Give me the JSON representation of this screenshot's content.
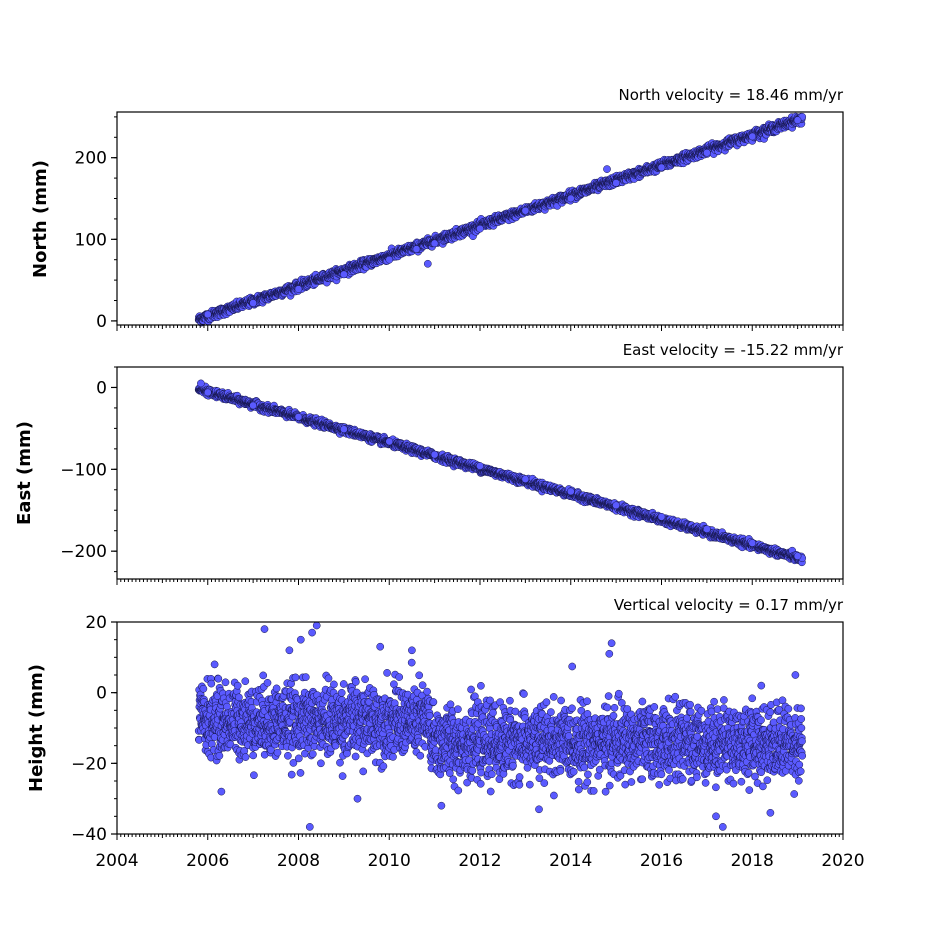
{
  "chart_data": [
    {
      "type": "scatter",
      "title": "North velocity = 18.46 mm/yr",
      "xlabel": "",
      "ylabel": "North (mm)",
      "xlim": [
        2004,
        2020
      ],
      "ylim": [
        -5,
        256
      ],
      "yticks": [
        0,
        100,
        200
      ],
      "ytick_labels": [
        "0",
        "100",
        "200"
      ],
      "x_range": [
        2005.8,
        2019.1
      ],
      "trend": {
        "slope_mm_per_yr": 18.46,
        "value_at_start": 2,
        "value_at_end": 248
      },
      "scatter_sd_mm": 2.5,
      "points": [
        [
          2006.0,
          8
        ],
        [
          2007.0,
          22
        ],
        [
          2008.0,
          39
        ],
        [
          2009.0,
          57
        ],
        [
          2010.0,
          75
        ],
        [
          2010.6,
          88
        ],
        [
          2010.85,
          70
        ],
        [
          2011.0,
          95
        ],
        [
          2012.0,
          113
        ],
        [
          2013.0,
          135
        ],
        [
          2014.0,
          150
        ],
        [
          2014.8,
          186
        ],
        [
          2015.0,
          169
        ],
        [
          2016.0,
          188
        ],
        [
          2017.0,
          206
        ],
        [
          2018.0,
          226
        ],
        [
          2019.0,
          246
        ]
      ],
      "marker_color": "#5a5aff",
      "grid": false
    },
    {
      "type": "scatter",
      "title": "East velocity = -15.22 mm/yr",
      "xlabel": "",
      "ylabel": "East (mm)",
      "xlim": [
        2004,
        2020
      ],
      "ylim": [
        -234,
        25
      ],
      "yticks": [
        0,
        -100,
        -200
      ],
      "ytick_labels": [
        "0",
        "−100",
        "−200"
      ],
      "x_range": [
        2005.8,
        2019.1
      ],
      "trend": {
        "slope_mm_per_yr": -15.22,
        "value_at_start": -2,
        "value_at_end": -210
      },
      "scatter_sd_mm": 2,
      "points": [
        [
          2005.85,
          5
        ],
        [
          2006.0,
          -6
        ],
        [
          2007.0,
          -22
        ],
        [
          2008.0,
          -36
        ],
        [
          2009.0,
          -51
        ],
        [
          2010.0,
          -66
        ],
        [
          2011.0,
          -82
        ],
        [
          2012.0,
          -96
        ],
        [
          2013.0,
          -112
        ],
        [
          2014.0,
          -127
        ],
        [
          2015.0,
          -144
        ],
        [
          2016.0,
          -158
        ],
        [
          2017.0,
          -173
        ],
        [
          2018.0,
          -190
        ],
        [
          2019.0,
          -206
        ]
      ],
      "marker_color": "#5a5aff",
      "grid": false
    },
    {
      "type": "scatter",
      "title": "Vertical velocity = 0.17 mm/yr",
      "xlabel": "",
      "ylabel": "Height (mm)",
      "xlim": [
        2004,
        2020
      ],
      "ylim": [
        -40,
        20
      ],
      "yticks": [
        -40,
        -20,
        0,
        20
      ],
      "ytick_labels": [
        "−40",
        "−20",
        "0",
        "20"
      ],
      "xticks": [
        2004,
        2006,
        2008,
        2010,
        2012,
        2014,
        2016,
        2018,
        2020
      ],
      "xtick_labels": [
        "2004",
        "2006",
        "2008",
        "2010",
        "2012",
        "2014",
        "2016",
        "2018",
        "2020"
      ],
      "x_range": [
        2005.8,
        2019.1
      ],
      "segments": [
        {
          "x_range": [
            2005.8,
            2010.9
          ],
          "mean_mm": -8,
          "sd_mm": 5
        },
        {
          "x_range": [
            2010.9,
            2019.1
          ],
          "mean_mm": -14,
          "sd_mm": 5
        }
      ],
      "points": [
        [
          2007.25,
          18
        ],
        [
          2008.05,
          15
        ],
        [
          2008.4,
          19
        ],
        [
          2008.3,
          17
        ],
        [
          2007.8,
          12
        ],
        [
          2009.8,
          13
        ],
        [
          2010.5,
          12
        ],
        [
          2014.9,
          14
        ],
        [
          2014.85,
          11
        ],
        [
          2008.25,
          -38
        ],
        [
          2009.3,
          -30
        ],
        [
          2006.3,
          -28
        ],
        [
          2011.15,
          -32
        ],
        [
          2013.3,
          -33
        ],
        [
          2017.35,
          -38
        ],
        [
          2017.2,
          -35
        ],
        [
          2018.4,
          -34
        ],
        [
          2006.15,
          8
        ],
        [
          2018.95,
          5
        ],
        [
          2018.2,
          2
        ]
      ],
      "marker_color": "#5a5aff",
      "grid": false
    }
  ]
}
